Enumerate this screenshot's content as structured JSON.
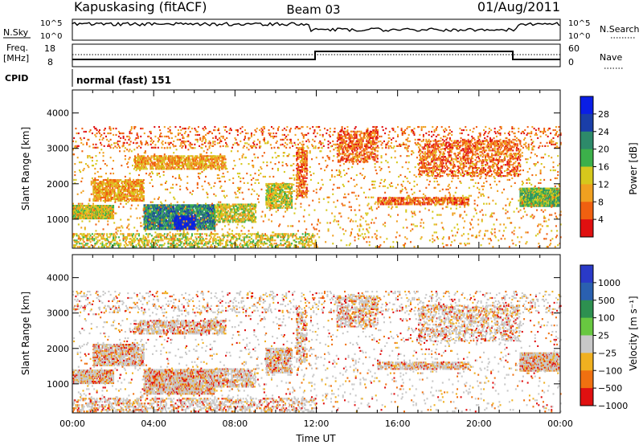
{
  "header": {
    "station": "Kapuskasing (fitACF)",
    "beam": "Beam 03",
    "date": "01/Aug/2011"
  },
  "sky_panel": {
    "left_label": "N.Sky",
    "right_label": "N.Search",
    "ticks": [
      "10^5",
      "10^0"
    ]
  },
  "freq_panel": {
    "left_label_1": "Freq.",
    "left_label_2": "[MHz]",
    "left_ticks": [
      "18",
      "8"
    ],
    "right_label": "Nave",
    "right_ticks": [
      "60",
      "0"
    ]
  },
  "cpid": {
    "label": "CPID",
    "value": "normal (fast) 151"
  },
  "colors": {
    "power": [
      "#0a1ee6",
      "#1a3ea8",
      "#2d8a6a",
      "#3cb04a",
      "#d6c81c",
      "#f0a020",
      "#f06010",
      "#e01010"
    ],
    "velocity": [
      "#2a3ac8",
      "#2a60b0",
      "#2d9050",
      "#68c840",
      "#c8c8c8",
      "#f0b020",
      "#f07010",
      "#e01010"
    ]
  },
  "chart_data": [
    {
      "type": "heatmap",
      "name": "power",
      "title": "",
      "xlabel": "",
      "ylabel": "Slant Range [km]",
      "colorbar_label": "Power [dB]",
      "colorbar_ticks": [
        "28",
        "24",
        "20",
        "16",
        "12",
        "8",
        "4"
      ],
      "x_ticks": [
        "00:00",
        "04:00",
        "08:00",
        "12:00",
        "16:00",
        "20:00",
        "00:00"
      ],
      "xlim": [
        0,
        24
      ],
      "y_ticks": [
        "4000",
        "3000",
        "2000",
        "1000"
      ],
      "ylim": [
        180,
        4650
      ]
    },
    {
      "type": "heatmap",
      "name": "velocity",
      "title": "",
      "xlabel": "Time UT",
      "ylabel": "Slant Range [km]",
      "colorbar_label": "Velocity [m s⁻¹]",
      "colorbar_ticks": [
        "1000",
        "500",
        "100",
        "25",
        "−25",
        "−100",
        "−500",
        "−1000"
      ],
      "x_ticks": [
        "00:00",
        "04:00",
        "08:00",
        "12:00",
        "16:00",
        "20:00",
        "00:00"
      ],
      "xlim": [
        0,
        24
      ],
      "y_ticks": [
        "4000",
        "3000",
        "2000",
        "1000"
      ],
      "ylim": [
        180,
        4650
      ]
    }
  ]
}
